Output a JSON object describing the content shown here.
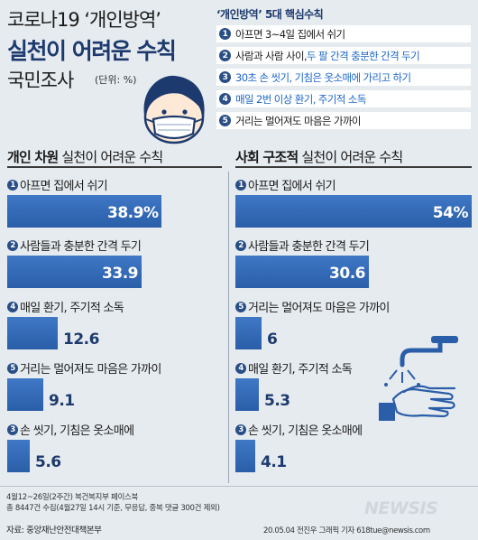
{
  "header": {
    "title_line1": "코로나19 ‘개인방역’",
    "title_line2": "실천이 어려운 수칙",
    "title_line3": "국민조사",
    "unit": "(단위: %)"
  },
  "rules": {
    "title": "‘개인방역’ 5대 핵심수칙",
    "items": [
      {
        "num": "1",
        "pre": "아프면 3~4일 집에서 쉬기",
        "hl": ""
      },
      {
        "num": "2",
        "pre": "사람과 사람 사이, ",
        "hl": "두 팔 간격 충분한 간격 두기"
      },
      {
        "num": "3",
        "pre": "",
        "hl": "30초 손 씻기, 기침은 옷소매에 가리고 하기"
      },
      {
        "num": "4",
        "pre": "",
        "hl": "매일 2번 이상 환기, 주기적 소독"
      },
      {
        "num": "5",
        "pre": "거리는 멀어져도 마음은 가까이",
        "hl": ""
      }
    ]
  },
  "chart_data": [
    {
      "type": "bar",
      "title_bold": "개인 차원",
      "title_rest": " 실천이 어려운 수칙",
      "unit": "%",
      "xlim": [
        0,
        54
      ],
      "items": [
        {
          "num": "1",
          "label": "아프면 집에서 쉬기",
          "value": 38.9,
          "display": "38.9%"
        },
        {
          "num": "2",
          "label": "사람들과 충분한 간격 두기",
          "value": 33.9,
          "display": "33.9"
        },
        {
          "num": "4",
          "label": "매일 환기, 주기적 소독",
          "value": 12.6,
          "display": "12.6"
        },
        {
          "num": "5",
          "label": "거리는 멀어져도 마음은 가까이",
          "value": 9.1,
          "display": "9.1"
        },
        {
          "num": "3",
          "label": "손 씻기, 기침은 옷소매에",
          "value": 5.6,
          "display": "5.6"
        }
      ]
    },
    {
      "type": "bar",
      "title_bold": "사회 구조적",
      "title_rest": " 실천이 어려운 수칙",
      "unit": "%",
      "xlim": [
        0,
        54
      ],
      "items": [
        {
          "num": "1",
          "label": "아프면 집에서 쉬기",
          "value": 54,
          "display": "54%"
        },
        {
          "num": "2",
          "label": "사람들과 충분한 간격 두기",
          "value": 30.6,
          "display": "30.6"
        },
        {
          "num": "5",
          "label": "거리는 멀어져도 마음은 가까이",
          "value": 6,
          "display": "6"
        },
        {
          "num": "4",
          "label": "매일 환기, 주기적 소독",
          "value": 5.3,
          "display": "5.3"
        },
        {
          "num": "3",
          "label": "손 씻기, 기침은 옷소매에",
          "value": 4.1,
          "display": "4.1"
        }
      ]
    }
  ],
  "footer": {
    "line1": "4월12~26일(2주간) 복건복지부 페이스북",
    "line2": "총 8447건 수집(4월27일 14시 기준, 무응답, 중복 댓글 300건 제외)",
    "source": "자료: 중앙재난안전대책본부",
    "credit": "20.05.04 전진우 그래픽 기자 618tue@newsis.com",
    "logo": "NEWSIS"
  },
  "icons": {
    "face": "masked-face-icon",
    "wash": "hand-washing-icon"
  },
  "colors": {
    "bar": "#2f66b3",
    "title": "#1d3a6e",
    "highlight": "#1b66c9"
  }
}
